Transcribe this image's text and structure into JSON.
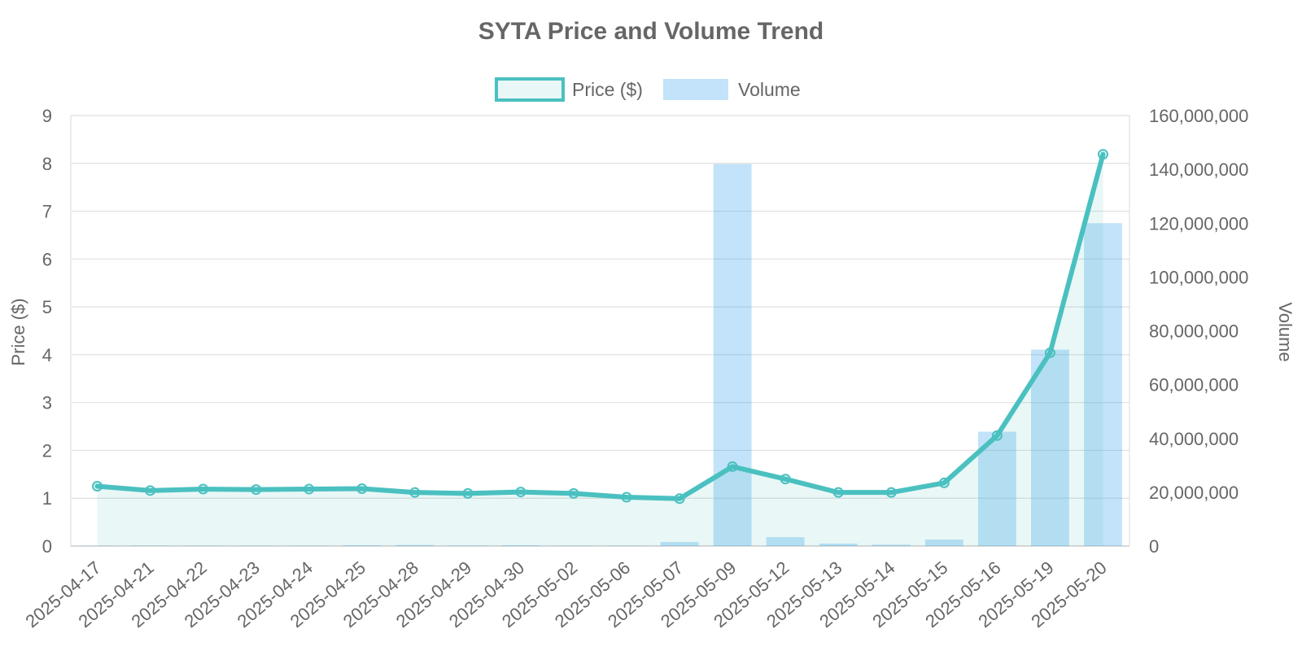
{
  "chart_data": {
    "type": "bar+line",
    "title": "SYTA Price and Volume Trend",
    "categories": [
      "2025-04-17",
      "2025-04-21",
      "2025-04-22",
      "2025-04-23",
      "2025-04-24",
      "2025-04-25",
      "2025-04-28",
      "2025-04-29",
      "2025-04-30",
      "2025-05-02",
      "2025-05-06",
      "2025-05-07",
      "2025-05-09",
      "2025-05-12",
      "2025-05-13",
      "2025-05-14",
      "2025-05-15",
      "2025-05-16",
      "2025-05-19",
      "2025-05-20"
    ],
    "series": [
      {
        "name": "Price ($)",
        "type": "line",
        "axis": "left",
        "color": "#4bc0c0",
        "fill": "rgba(75,192,192,0.12)",
        "values": [
          1.25,
          1.16,
          1.19,
          1.18,
          1.19,
          1.2,
          1.12,
          1.1,
          1.13,
          1.1,
          1.02,
          0.99,
          1.66,
          1.4,
          1.12,
          1.12,
          1.32,
          2.31,
          4.04,
          8.19
        ]
      },
      {
        "name": "Volume",
        "type": "bar",
        "axis": "right",
        "color": "rgba(54,162,235,0.30)",
        "values": [
          100000,
          150000,
          100000,
          100000,
          100000,
          300000,
          400000,
          200000,
          300000,
          100000,
          100000,
          1500000,
          142000000,
          3300000,
          900000,
          500000,
          2400000,
          42500000,
          73000000,
          120000000
        ]
      }
    ],
    "ylabel": "Price ($)",
    "y2label": "Volume",
    "ylim": [
      0,
      9
    ],
    "yticks": [
      "0",
      "1",
      "2",
      "3",
      "4",
      "5",
      "6",
      "7",
      "8",
      "9"
    ],
    "y2lim": [
      0,
      160000000
    ],
    "y2ticks": [
      "0",
      "20,000,000",
      "40,000,000",
      "60,000,000",
      "80,000,000",
      "100,000,000",
      "120,000,000",
      "140,000,000",
      "160,000,000"
    ],
    "grid": true,
    "legend_position": "top-center"
  }
}
